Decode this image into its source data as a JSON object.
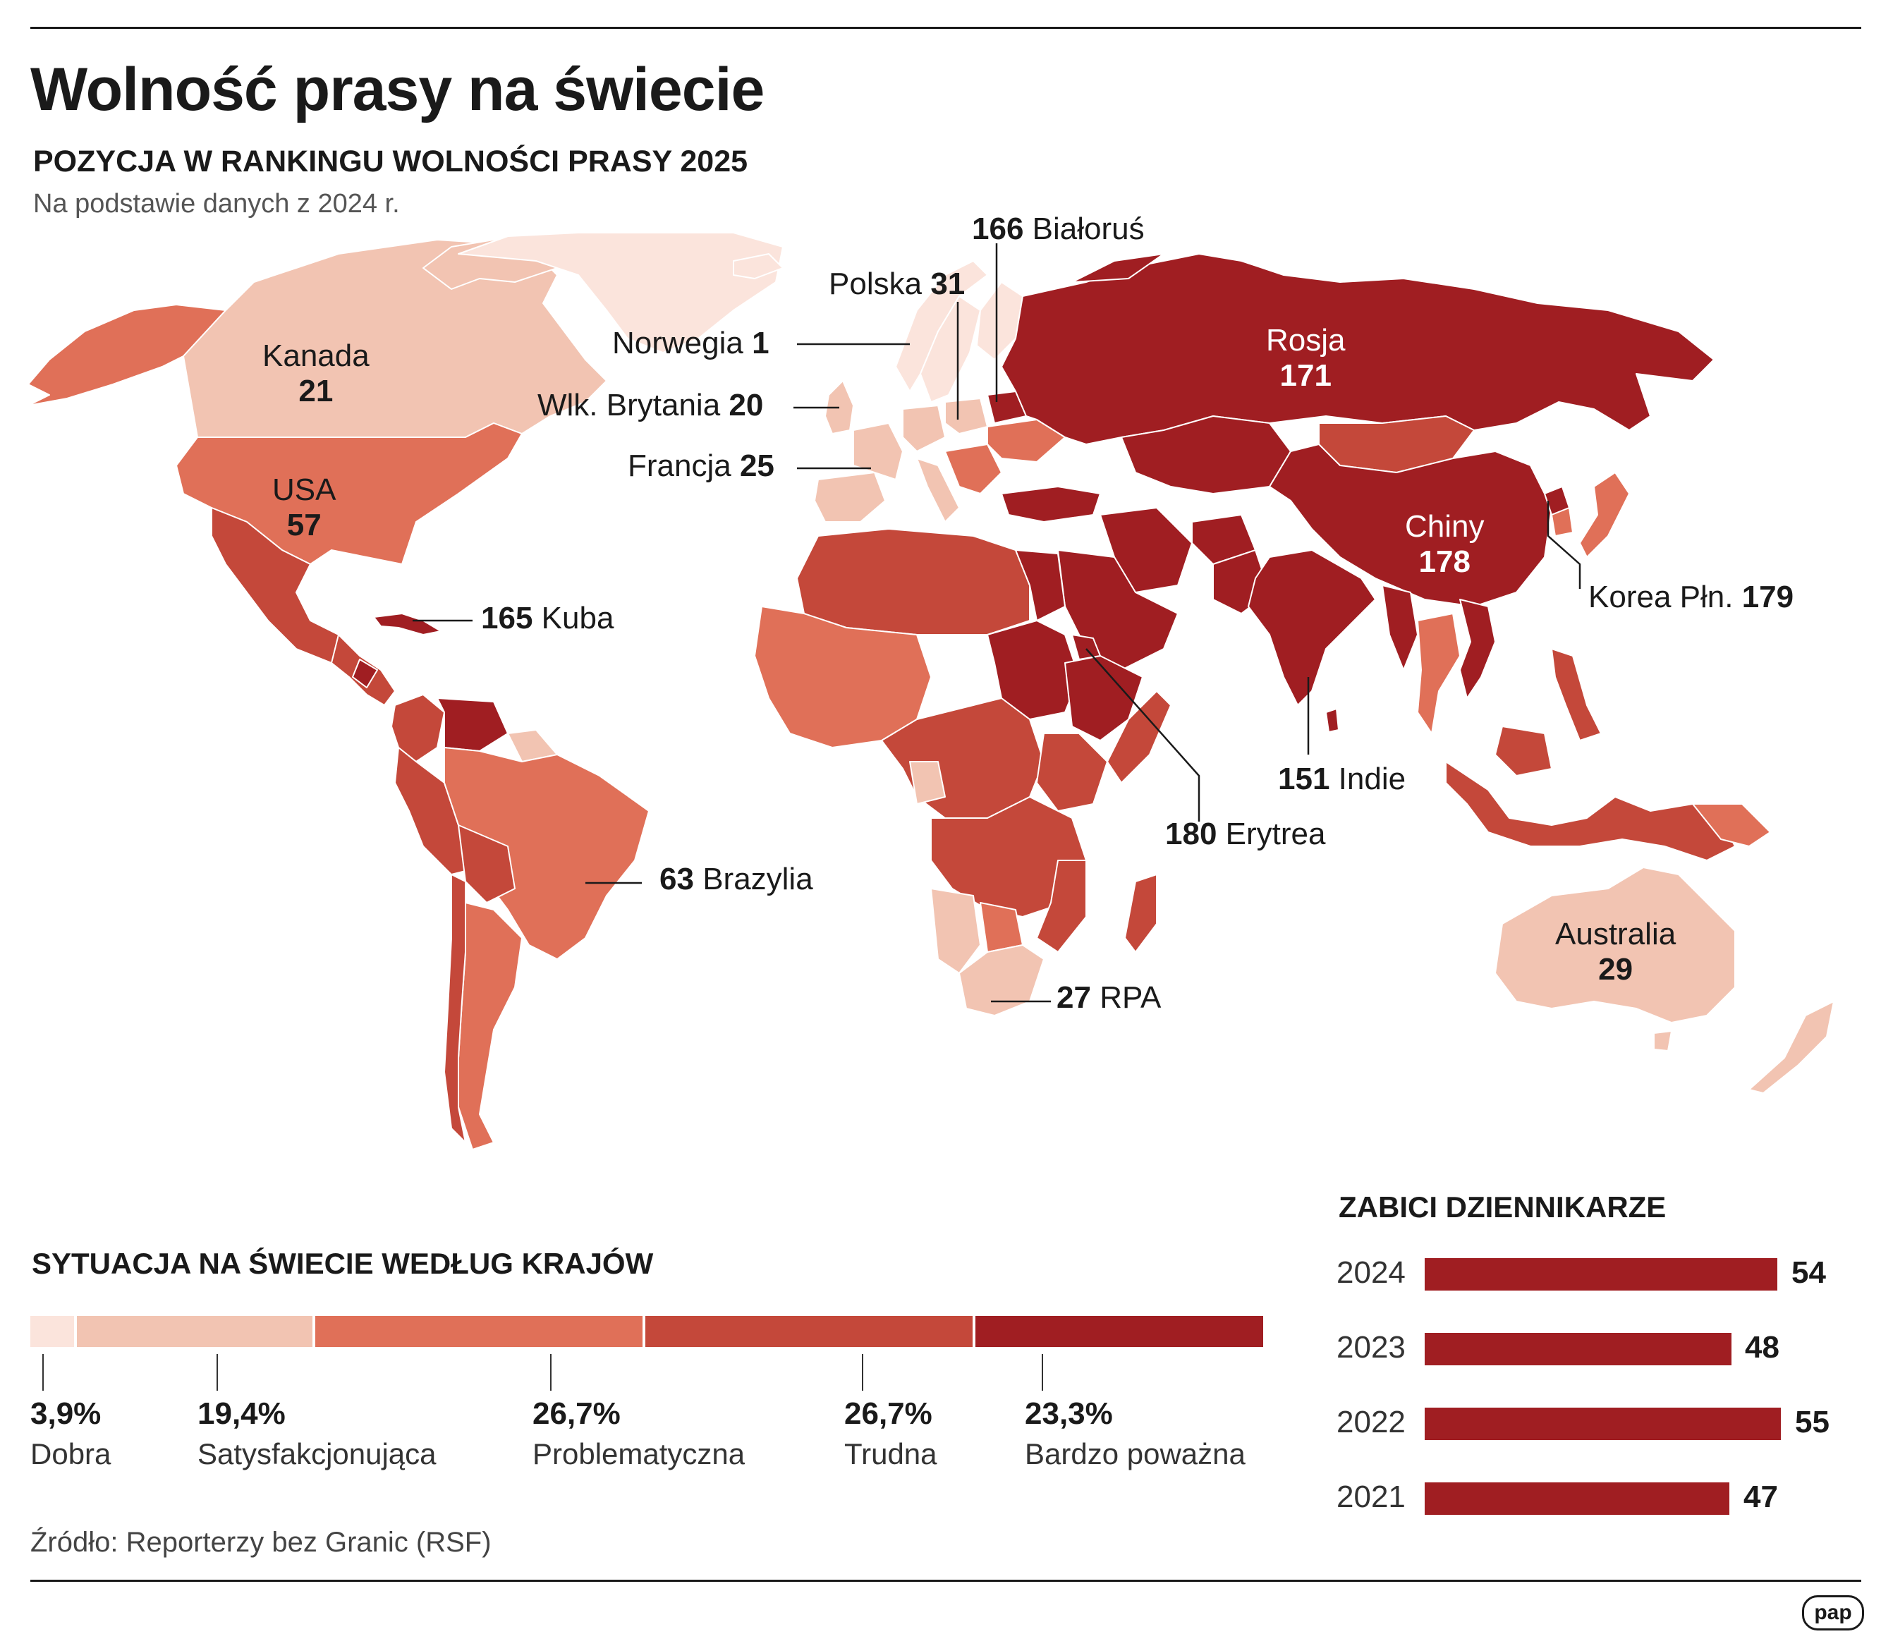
{
  "header": {
    "title": "Wolność prasy na świecie",
    "subtitle": "POZYCJA W RANKINGU WOLNOŚCI PRASY 2025",
    "note": "Na podstawie danych z 2024 r."
  },
  "map": {
    "colors": {
      "dobra": "#fbe4dc",
      "satysfakcjonujaca": "#f2c4b2",
      "problematyczna": "#e07058",
      "trudna": "#c4483a",
      "bardzo_powazna": "#a01e22"
    },
    "countries": [
      {
        "name": "Białoruś",
        "rank": "166"
      },
      {
        "name": "Polska",
        "rank": "31"
      },
      {
        "name": "Norwegia",
        "rank": "1"
      },
      {
        "name": "Wlk. Brytania",
        "rank": "20"
      },
      {
        "name": "Francja",
        "rank": "25"
      },
      {
        "name": "Kanada",
        "rank": "21"
      },
      {
        "name": "USA",
        "rank": "57"
      },
      {
        "name": "Kuba",
        "rank": "165"
      },
      {
        "name": "Rosja",
        "rank": "171"
      },
      {
        "name": "Chiny",
        "rank": "178"
      },
      {
        "name": "Korea Płn.",
        "rank": "179"
      },
      {
        "name": "Indie",
        "rank": "151"
      },
      {
        "name": "Erytrea",
        "rank": "180"
      },
      {
        "name": "Brazylia",
        "rank": "63"
      },
      {
        "name": "RPA",
        "rank": "27"
      },
      {
        "name": "Australia",
        "rank": "29"
      }
    ]
  },
  "situation": {
    "heading": "SYTUACJA NA ŚWIECIE WEDŁUG KRAJÓW",
    "categories": [
      {
        "pct": "3,9%",
        "label": "Dobra",
        "value": 3.9,
        "color": "#fbe4dc"
      },
      {
        "pct": "19,4%",
        "label": "Satysfakcjonująca",
        "value": 19.4,
        "color": "#f2c4b2"
      },
      {
        "pct": "26,7%",
        "label": "Problematyczna",
        "value": 26.7,
        "color": "#e07058"
      },
      {
        "pct": "26,7%",
        "label": "Trudna",
        "value": 26.7,
        "color": "#c4483a"
      },
      {
        "pct": "23,3%",
        "label": "Bardzo poważna",
        "value": 23.3,
        "color": "#a01e22"
      }
    ]
  },
  "killed": {
    "heading": "ZABICI DZIENNIKARZE",
    "rows": [
      {
        "year": "2024",
        "value": 54
      },
      {
        "year": "2023",
        "value": 48
      },
      {
        "year": "2022",
        "value": 55
      },
      {
        "year": "2021",
        "value": 47
      }
    ]
  },
  "footer": {
    "source": "Źródło: Reporterzy bez Granic (RSF)",
    "logo": "pap"
  }
}
